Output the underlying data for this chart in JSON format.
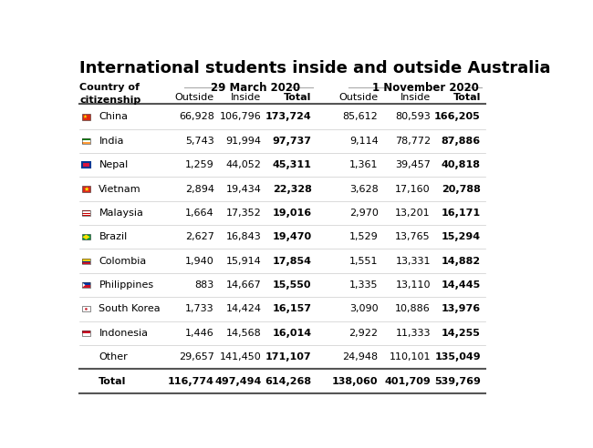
{
  "title": "International students inside and outside Australia",
  "rows": [
    {
      "flag": "china",
      "country": "China",
      "mar_out": "66,928",
      "mar_in": "106,796",
      "mar_tot": "173,724",
      "nov_out": "85,612",
      "nov_in": "80,593",
      "nov_tot": "166,205"
    },
    {
      "flag": "india",
      "country": "India",
      "mar_out": "5,743",
      "mar_in": "91,994",
      "mar_tot": "97,737",
      "nov_out": "9,114",
      "nov_in": "78,772",
      "nov_tot": "87,886"
    },
    {
      "flag": "nepal",
      "country": "Nepal",
      "mar_out": "1,259",
      "mar_in": "44,052",
      "mar_tot": "45,311",
      "nov_out": "1,361",
      "nov_in": "39,457",
      "nov_tot": "40,818"
    },
    {
      "flag": "vietnam",
      "country": "Vietnam",
      "mar_out": "2,894",
      "mar_in": "19,434",
      "mar_tot": "22,328",
      "nov_out": "3,628",
      "nov_in": "17,160",
      "nov_tot": "20,788"
    },
    {
      "flag": "malaysia",
      "country": "Malaysia",
      "mar_out": "1,664",
      "mar_in": "17,352",
      "mar_tot": "19,016",
      "nov_out": "2,970",
      "nov_in": "13,201",
      "nov_tot": "16,171"
    },
    {
      "flag": "brazil",
      "country": "Brazil",
      "mar_out": "2,627",
      "mar_in": "16,843",
      "mar_tot": "19,470",
      "nov_out": "1,529",
      "nov_in": "13,765",
      "nov_tot": "15,294"
    },
    {
      "flag": "colombia",
      "country": "Colombia",
      "mar_out": "1,940",
      "mar_in": "15,914",
      "mar_tot": "17,854",
      "nov_out": "1,551",
      "nov_in": "13,331",
      "nov_tot": "14,882"
    },
    {
      "flag": "philippines",
      "country": "Philippines",
      "mar_out": "883",
      "mar_in": "14,667",
      "mar_tot": "15,550",
      "nov_out": "1,335",
      "nov_in": "13,110",
      "nov_tot": "14,445"
    },
    {
      "flag": "southkorea",
      "country": "South Korea",
      "mar_out": "1,733",
      "mar_in": "14,424",
      "mar_tot": "16,157",
      "nov_out": "3,090",
      "nov_in": "10,886",
      "nov_tot": "13,976"
    },
    {
      "flag": "indonesia",
      "country": "Indonesia",
      "mar_out": "1,446",
      "mar_in": "14,568",
      "mar_tot": "16,014",
      "nov_out": "2,922",
      "nov_in": "11,333",
      "nov_tot": "14,255"
    },
    {
      "flag": null,
      "country": "Other",
      "mar_out": "29,657",
      "mar_in": "141,450",
      "mar_tot": "171,107",
      "nov_out": "24,948",
      "nov_in": "110,101",
      "nov_tot": "135,049"
    },
    {
      "flag": null,
      "country": "Total",
      "mar_out": "116,774",
      "mar_in": "497,494",
      "mar_tot": "614,268",
      "nov_out": "138,060",
      "nov_in": "401,709",
      "nov_tot": "539,769"
    }
  ],
  "flag_colors": {
    "china": [
      "#DE2910",
      "#FFDE00"
    ],
    "india": [
      "#FF9933",
      "#138808"
    ],
    "nepal": [
      "#003893",
      "#DC143C"
    ],
    "vietnam": [
      "#DA251D",
      "#FFFF00"
    ],
    "malaysia": [
      "#CC0001",
      "#003893"
    ],
    "brazil": [
      "#009C3B",
      "#FFDF00"
    ],
    "colombia": [
      "#FCD116",
      "#003087"
    ],
    "philippines": [
      "#0038A8",
      "#CE1126"
    ],
    "southkorea": [
      "#FFFFFF",
      "#CD2E3A"
    ],
    "indonesia": [
      "#CE1126",
      "#FFFFFF"
    ]
  },
  "bg_color": "#ffffff",
  "text_color": "#000000",
  "line_color": "#cccccc",
  "thick_line_color": "#555555",
  "title_fontsize": 13,
  "header_fontsize": 8,
  "cell_fontsize": 8
}
